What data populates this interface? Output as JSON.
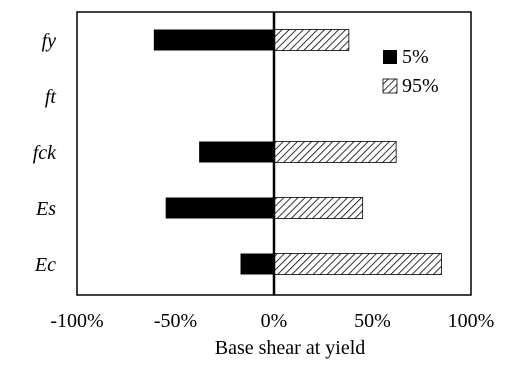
{
  "chart_data": {
    "type": "bar",
    "orientation": "horizontal",
    "categories": [
      "fy",
      "ft",
      "fck",
      "Es",
      "Ec"
    ],
    "series": [
      {
        "name": "5%",
        "values": [
          -0.61,
          0,
          -0.38,
          -0.55,
          -0.17
        ],
        "color": "#000000",
        "pattern": "solid"
      },
      {
        "name": "95%",
        "values": [
          0.38,
          0,
          0.62,
          0.45,
          0.85
        ],
        "color": "#000000",
        "pattern": "diagonal-hatch"
      }
    ],
    "xlabel": "Base shear at yield",
    "ylabel": "",
    "xlim": [
      -1,
      1
    ],
    "x_ticks": [
      -1,
      -0.5,
      0,
      0.5,
      1
    ],
    "x_tick_labels": [
      "-100%",
      "-50%",
      "0%",
      "50%",
      "100%"
    ],
    "legend": {
      "placement": "top-right"
    },
    "grid": false
  }
}
